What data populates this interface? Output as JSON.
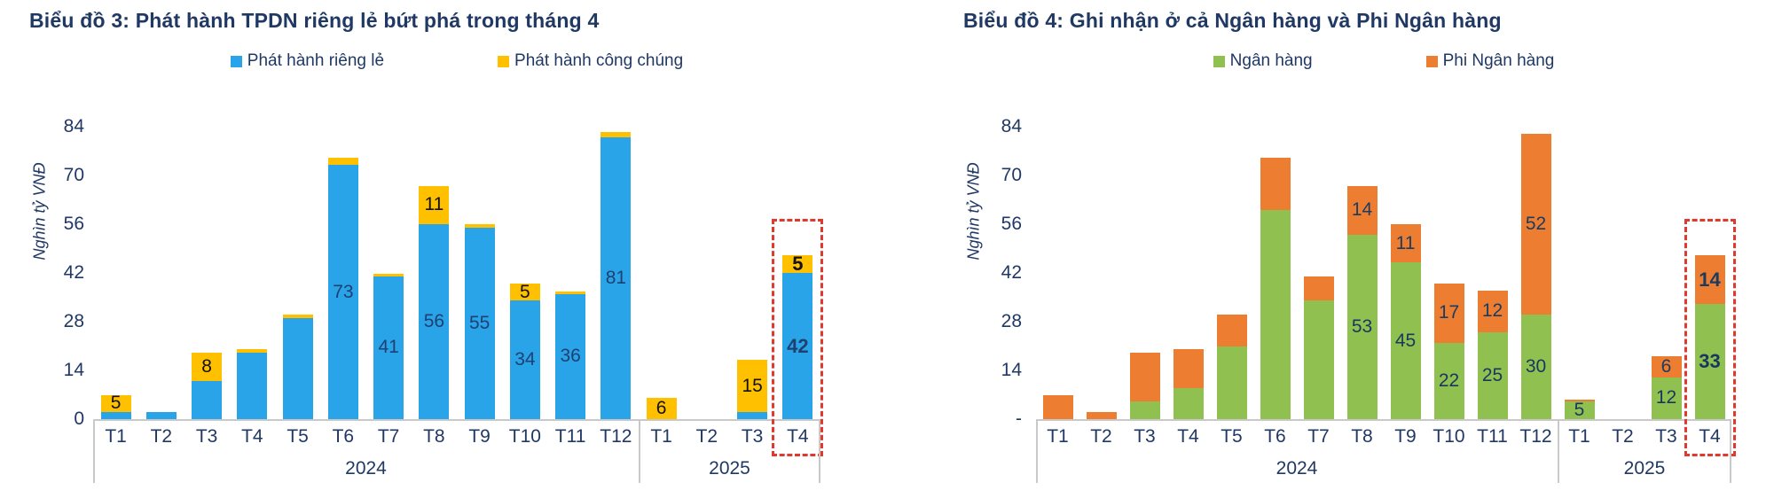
{
  "page": {
    "background": "#FFFFFF"
  },
  "chart_data": [
    {
      "type": "stacked-bar",
      "title": "Biểu đồ 3: Phát hành TPDN riêng lẻ bứt phá trong tháng 4",
      "ylabel": "Nghìn tỷ VNĐ",
      "ylim": [
        0,
        84
      ],
      "yticks": [
        84,
        70,
        56,
        42,
        28,
        14,
        0
      ],
      "ytick_labels": [
        "84",
        "70",
        "56",
        "42",
        "28",
        "14",
        "0"
      ],
      "categories": [
        "T1",
        "T2",
        "T3",
        "T4",
        "T5",
        "T6",
        "T7",
        "T8",
        "T9",
        "T10",
        "T11",
        "T12",
        "T1",
        "T2",
        "T3",
        "T4"
      ],
      "year_groups": [
        {
          "label": "2024",
          "count": 12
        },
        {
          "label": "2025",
          "count": 4
        }
      ],
      "grid": false,
      "legend_position": "top",
      "series": [
        {
          "name": "Phát hành riêng lẻ",
          "color": "#29A4E9",
          "label_color": "#1F4070",
          "values": [
            2,
            2,
            11,
            19,
            29,
            73,
            41,
            56,
            55,
            34,
            36,
            81,
            0,
            0,
            2,
            42
          ],
          "labels": [
            "",
            "",
            "",
            "",
            "",
            "73",
            "41",
            "56",
            "55",
            "34",
            "36",
            "81",
            "",
            "",
            "",
            "42"
          ]
        },
        {
          "name": "Phát hành công chúng",
          "color": "#FFC000",
          "label_color": "#111111",
          "values": [
            5,
            0,
            8,
            1,
            1,
            2,
            0.7,
            11,
            1,
            5,
            0.7,
            1.5,
            6,
            0,
            15,
            5
          ],
          "labels": [
            "5",
            "",
            "8",
            "",
            "",
            "",
            "",
            "11",
            "",
            "5",
            "",
            "",
            "6",
            "",
            "15",
            "5"
          ]
        }
      ],
      "highlight": {
        "index": 15,
        "color": "#E0392E",
        "style": "dashed-box"
      }
    },
    {
      "type": "stacked-bar",
      "title": "Biểu đồ 4: Ghi nhận ở cả Ngân hàng và Phi Ngân hàng",
      "ylabel": "Nghìn tỷ VNĐ",
      "ylim": [
        0,
        84
      ],
      "yticks": [
        84,
        70,
        56,
        42,
        28,
        14,
        0
      ],
      "ytick_labels": [
        "84",
        "70",
        "56",
        "42",
        "28",
        "14",
        "-"
      ],
      "categories": [
        "T1",
        "T2",
        "T3",
        "T4",
        "T5",
        "T6",
        "T7",
        "T8",
        "T9",
        "T10",
        "T11",
        "T12",
        "T1",
        "T2",
        "T3",
        "T4"
      ],
      "year_groups": [
        {
          "label": "2024",
          "count": 12
        },
        {
          "label": "2025",
          "count": 4
        }
      ],
      "grid": false,
      "legend_position": "top",
      "series": [
        {
          "name": "Ngân hàng",
          "color": "#90C150",
          "label_color": "#17375E",
          "values": [
            0,
            0,
            5,
            9,
            21,
            60,
            34,
            53,
            45,
            22,
            25,
            30,
            5,
            0,
            12,
            33
          ],
          "labels": [
            "",
            "",
            "",
            "",
            "",
            "",
            "",
            "53",
            "45",
            "22",
            "25",
            "30",
            "5",
            "",
            "12",
            "33"
          ]
        },
        {
          "name": "Phi Ngân hàng",
          "color": "#ED7D31",
          "label_color": "#1B3C5F",
          "values": [
            7,
            2,
            14,
            11,
            9,
            15,
            7,
            14,
            11,
            17,
            12,
            52,
            0.7,
            0,
            6,
            14
          ],
          "labels": [
            "",
            "",
            "",
            "",
            "",
            "",
            "",
            "14",
            "11",
            "17",
            "12",
            "52",
            "",
            "",
            "6",
            "14"
          ]
        }
      ],
      "highlight": {
        "index": 15,
        "color": "#E0392E",
        "style": "dashed-box"
      }
    }
  ]
}
